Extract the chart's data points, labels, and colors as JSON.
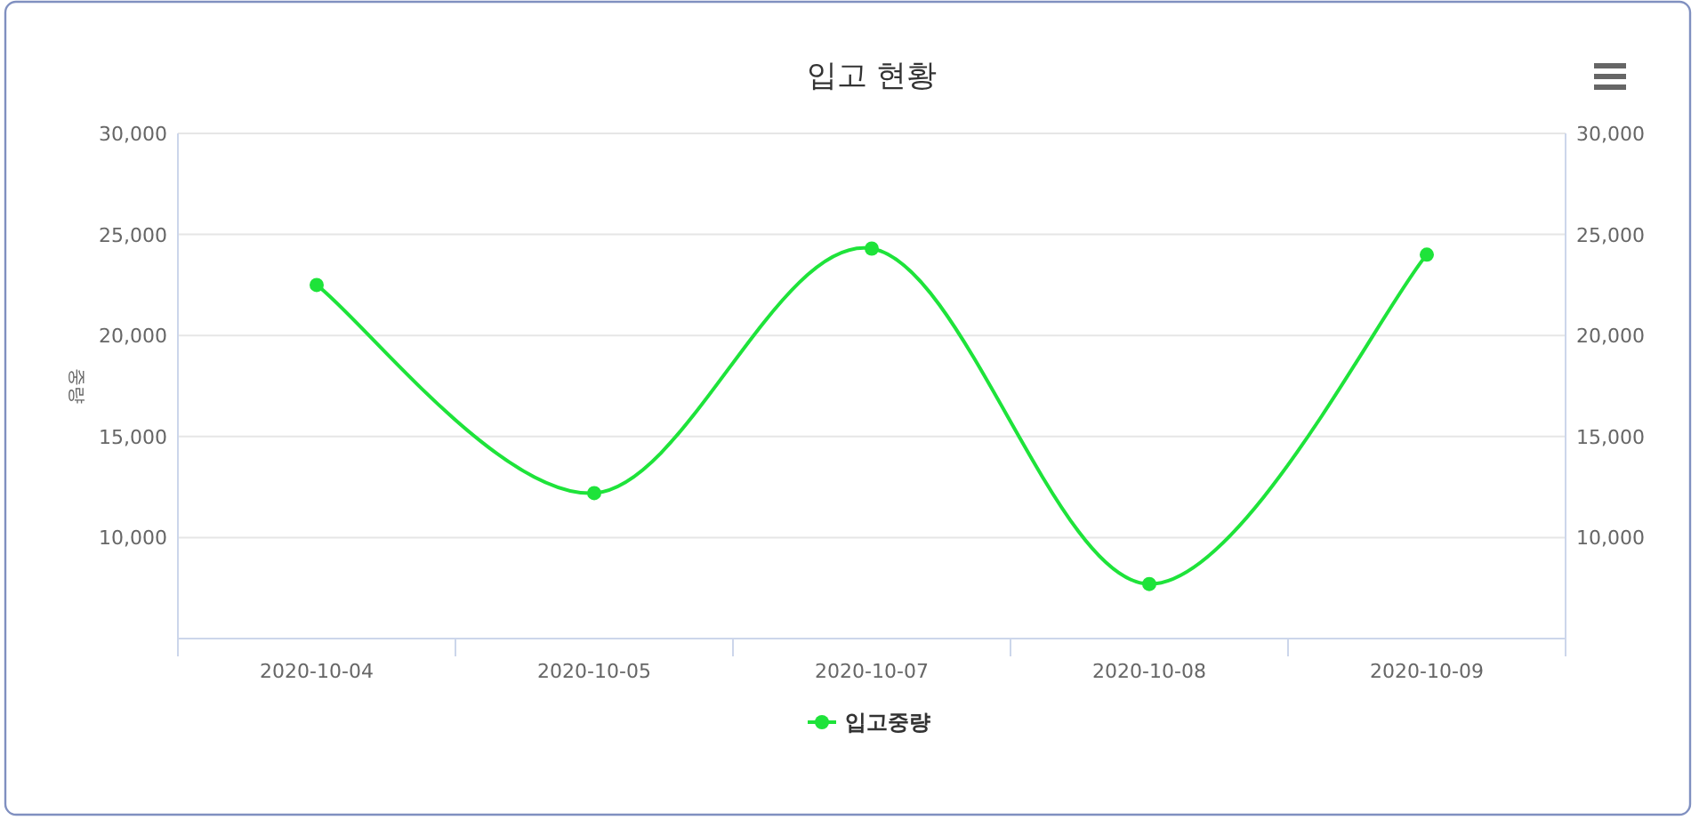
{
  "chart_data": {
    "type": "line",
    "title": "입고 현황",
    "ylabel": "중량",
    "categories": [
      "2020-10-04",
      "2020-10-05",
      "2020-10-07",
      "2020-10-08",
      "2020-10-09"
    ],
    "series": [
      {
        "name": "입고중량",
        "color": "#1ee33a",
        "values": [
          22500,
          12200,
          24300,
          7700,
          24000
        ]
      }
    ],
    "ylim": [
      5000,
      30000
    ],
    "yticks": [
      {
        "value": 10000,
        "label": "10,000"
      },
      {
        "value": 15000,
        "label": "15,000"
      },
      {
        "value": 20000,
        "label": "20,000"
      },
      {
        "value": 25000,
        "label": "25,000"
      },
      {
        "value": 30000,
        "label": "30,000"
      }
    ],
    "y2lim": [
      5000,
      30000
    ],
    "y2ticks": [
      {
        "value": 10000,
        "label": "10,000"
      },
      {
        "value": 15000,
        "label": "15,000"
      },
      {
        "value": 20000,
        "label": "20,000"
      },
      {
        "value": 25000,
        "label": "25,000"
      },
      {
        "value": 30000,
        "label": "30,000"
      }
    ],
    "grid": "y",
    "legend": "bottom",
    "marker": "circle"
  }
}
